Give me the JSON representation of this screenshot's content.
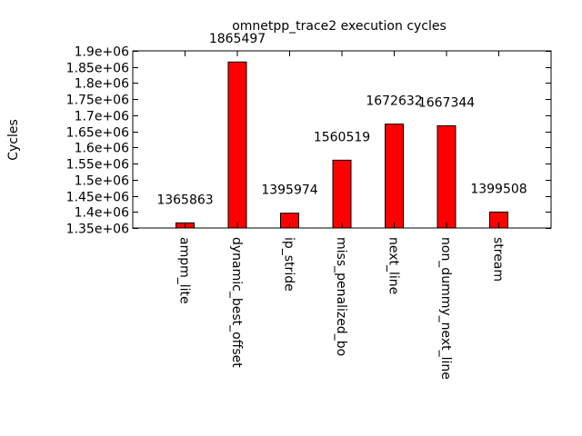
{
  "chart_data": {
    "type": "bar",
    "title": "omnetpp_trace2 execution cycles",
    "xlabel": "",
    "ylabel": "Cycles",
    "ylim": [
      1350000,
      1900000
    ],
    "yticks": [
      1350000,
      1400000,
      1450000,
      1500000,
      1550000,
      1600000,
      1650000,
      1700000,
      1750000,
      1800000,
      1850000,
      1900000
    ],
    "ytick_labels": [
      "1.35e+06",
      "1.4e+06",
      "1.45e+06",
      "1.5e+06",
      "1.55e+06",
      "1.6e+06",
      "1.65e+06",
      "1.7e+06",
      "1.75e+06",
      "1.8e+06",
      "1.85e+06",
      "1.9e+06"
    ],
    "categories": [
      "ampm_lite",
      "dynamic_best_offset",
      "ip_stride",
      "miss_penalized_bo",
      "next_line",
      "non_dummy_next_line",
      "stream"
    ],
    "values": [
      1365863,
      1865497,
      1395974,
      1560519,
      1672632,
      1667344,
      1399508
    ],
    "value_labels": [
      "1365863",
      "1865497",
      "1395974",
      "1560519",
      "1672632",
      "1667344",
      "1399508"
    ],
    "bar_color": "#ff0000",
    "grid": false,
    "legend": "none"
  }
}
